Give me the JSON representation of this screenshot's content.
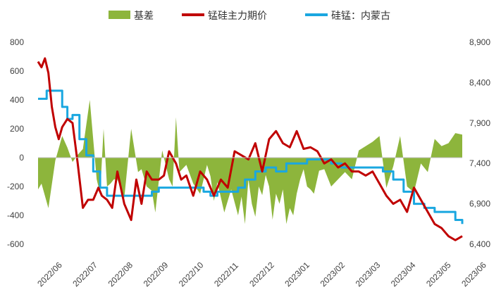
{
  "chart_data": {
    "type": "line",
    "title": "",
    "legend": {
      "placement": "top",
      "items": [
        {
          "label": "基差",
          "series": "basis"
        },
        {
          "label": "锰硅主力期价",
          "series": "futures"
        },
        {
          "label": "硅锰：内蒙古",
          "series": "spot"
        }
      ]
    },
    "x_ticks": [
      "2022/06",
      "2022/07",
      "2022/08",
      "2022/09",
      "2022/10",
      "2022/11",
      "2022/12",
      "2023/01",
      "2023/02",
      "2023/03",
      "2023/04",
      "2023/05",
      "2023/06"
    ],
    "left_axis": {
      "min": -600,
      "max": 800,
      "ticks": [
        "800",
        "600",
        "400",
        "200",
        "0",
        "-200",
        "-400",
        "-600"
      ]
    },
    "right_axis": {
      "min": 6400,
      "max": 8900,
      "ticks": [
        "8,900",
        "8,400",
        "7,900",
        "7,400",
        "6,900",
        "6,400"
      ]
    },
    "colors": {
      "basis": "#8db53c",
      "futures": "#c00000",
      "spot": "#1aa7e0"
    },
    "grid": false,
    "series": [
      {
        "name": "基差",
        "key": "basis",
        "type": "area",
        "axis": "left",
        "x": [
          0,
          0.1,
          0.3,
          0.5,
          0.7,
          0.85,
          1.0,
          1.15,
          1.3,
          1.5,
          1.7,
          1.8,
          1.9,
          2.0,
          2.1,
          2.2,
          2.3,
          2.5,
          2.7,
          2.9,
          3.0,
          3.15,
          3.3,
          3.4,
          3.6,
          3.8,
          3.9,
          4.0,
          4.1,
          4.3,
          4.5,
          4.7,
          4.9,
          5.0,
          5.1,
          5.2,
          5.4,
          5.6,
          5.8,
          5.9,
          6.0,
          6.1,
          6.2,
          6.3,
          6.4,
          6.5,
          6.6,
          6.7,
          6.8,
          6.9,
          7.0,
          7.1,
          7.2,
          7.3,
          7.4,
          7.5,
          7.6,
          7.7,
          7.8,
          7.9,
          8.0,
          8.15,
          8.3,
          8.5,
          8.7,
          8.9,
          9.1,
          9.3,
          9.5,
          9.7,
          9.9,
          10.1,
          10.3,
          10.5,
          10.7,
          10.9,
          11.1,
          11.3,
          11.5,
          11.7,
          11.9,
          12.1,
          12.3
        ],
        "values": [
          -220,
          -180,
          -350,
          -20,
          150,
          70,
          -30,
          20,
          60,
          400,
          -150,
          -250,
          200,
          -200,
          -180,
          -150,
          -150,
          -280,
          200,
          -100,
          -80,
          -200,
          -230,
          -380,
          50,
          -150,
          -200,
          280,
          -100,
          -50,
          -180,
          -250,
          -50,
          -130,
          -300,
          -170,
          -380,
          -220,
          -400,
          -270,
          -460,
          -150,
          -320,
          -410,
          -200,
          -260,
          -120,
          -200,
          -430,
          -250,
          -320,
          -220,
          -460,
          -350,
          -400,
          -250,
          -150,
          -80,
          -200,
          -220,
          -250,
          -90,
          -80,
          -200,
          -150,
          -100,
          -150,
          50,
          80,
          110,
          150,
          -210,
          -60,
          150,
          -200,
          -240,
          -40,
          -100,
          130,
          80,
          100,
          170,
          160
        ]
      },
      {
        "name": "锰硅主力期价",
        "key": "futures",
        "type": "line",
        "axis": "right",
        "x": [
          0,
          0.1,
          0.2,
          0.3,
          0.4,
          0.5,
          0.6,
          0.7,
          0.85,
          1.0,
          1.15,
          1.3,
          1.45,
          1.6,
          1.75,
          1.85,
          2.0,
          2.15,
          2.3,
          2.5,
          2.7,
          2.85,
          3.0,
          3.15,
          3.3,
          3.5,
          3.65,
          3.8,
          4.0,
          4.15,
          4.3,
          4.5,
          4.7,
          4.9,
          5.1,
          5.3,
          5.5,
          5.7,
          5.9,
          6.1,
          6.3,
          6.5,
          6.7,
          6.9,
          7.1,
          7.3,
          7.5,
          7.7,
          7.9,
          8.1,
          8.3,
          8.5,
          8.7,
          8.9,
          9.1,
          9.3,
          9.5,
          9.7,
          9.9,
          10.1,
          10.3,
          10.5,
          10.7,
          10.9,
          11.1,
          11.3,
          11.5,
          11.7,
          11.9,
          12.1,
          12.3
        ],
        "values": [
          8660,
          8590,
          8700,
          8520,
          8100,
          7850,
          7700,
          7850,
          7950,
          7900,
          7400,
          6850,
          6950,
          6950,
          7100,
          7000,
          6950,
          6850,
          7300,
          6900,
          6700,
          7200,
          6900,
          7300,
          7200,
          7200,
          7250,
          7550,
          7400,
          7200,
          7250,
          7000,
          7300,
          7200,
          7000,
          7200,
          7100,
          7550,
          7500,
          7450,
          7650,
          7300,
          7700,
          7800,
          7650,
          7600,
          7800,
          7580,
          7600,
          7550,
          7400,
          7450,
          7350,
          7400,
          7300,
          7300,
          7250,
          7300,
          7150,
          7000,
          6900,
          6950,
          6800,
          7100,
          6950,
          6800,
          6650,
          6600,
          6500,
          6450,
          6500
        ]
      },
      {
        "name": "硅锰：内蒙古",
        "key": "spot",
        "type": "step",
        "axis": "right",
        "x": [
          0,
          0.25,
          0.5,
          0.7,
          0.85,
          1.0,
          1.2,
          1.4,
          1.6,
          1.8,
          2.0,
          2.5,
          3.0,
          3.3,
          3.5,
          3.8,
          4.0,
          4.5,
          4.8,
          5.0,
          5.2,
          5.5,
          5.8,
          6.0,
          6.3,
          6.6,
          6.9,
          7.2,
          7.5,
          7.8,
          8.0,
          8.2,
          8.5,
          8.8,
          9.1,
          9.4,
          9.7,
          10.0,
          10.3,
          10.6,
          10.9,
          11.2,
          11.5,
          11.8,
          12.1,
          12.3
        ],
        "values": [
          8200,
          8300,
          8300,
          8100,
          7950,
          8000,
          7700,
          7500,
          7300,
          7100,
          7000,
          7000,
          7000,
          7050,
          7100,
          7100,
          7100,
          7100,
          7050,
          7000,
          7050,
          7050,
          7100,
          7200,
          7300,
          7350,
          7300,
          7400,
          7400,
          7450,
          7450,
          7450,
          7400,
          7350,
          7350,
          7350,
          7350,
          7300,
          7200,
          7050,
          6900,
          6850,
          6800,
          6800,
          6700,
          6650
        ]
      }
    ]
  }
}
